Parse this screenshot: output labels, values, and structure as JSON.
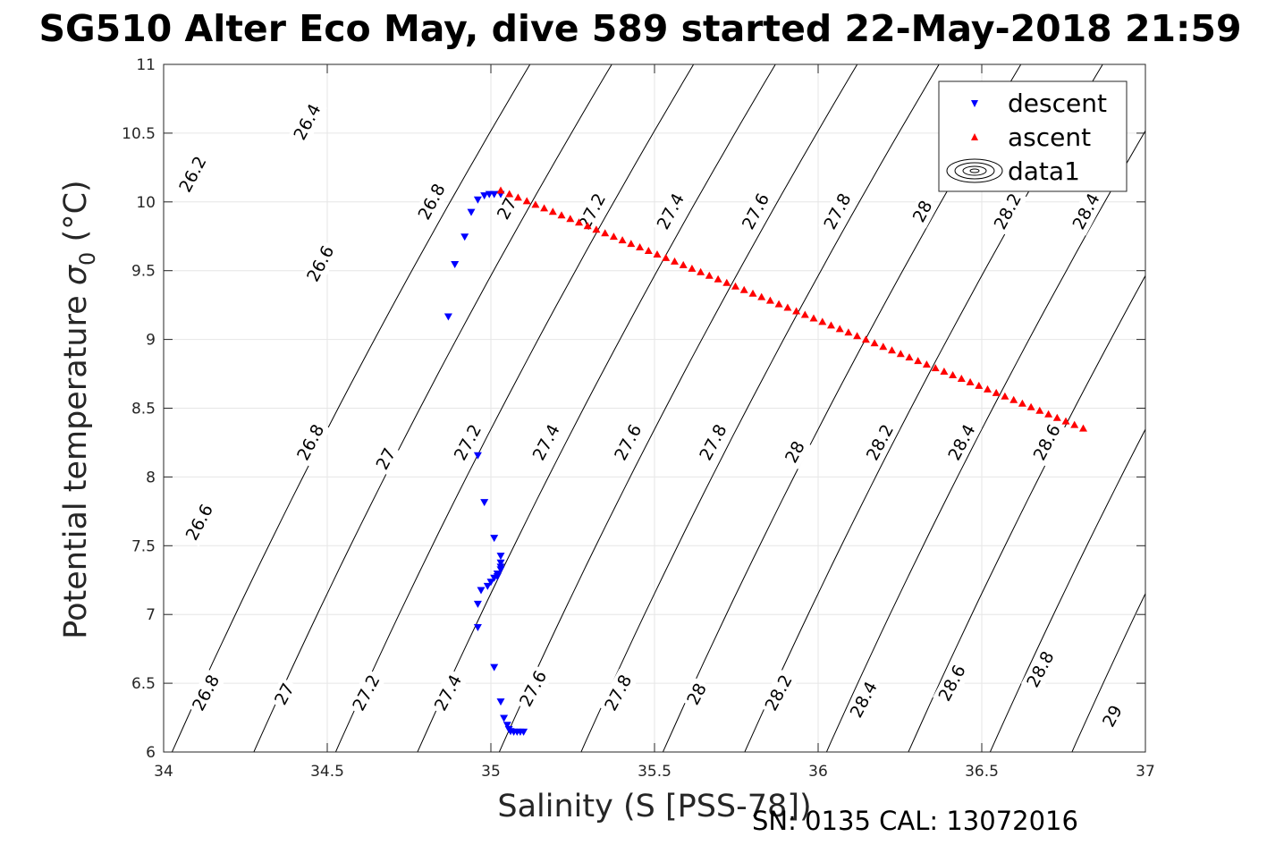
{
  "chart_data": {
    "type": "scatter",
    "title": "SG510 Alter Eco May, dive 589 started 22-May-2018 21:59",
    "xlabel": "Salinity (S [PSS-78])",
    "ylabel_main": "Potential temperature ",
    "ylabel_sigma": "σ",
    "ylabel_sub": "0",
    "ylabel_unit": " (°C)",
    "footer": "SN: 0135  CAL: 13072016",
    "xlim": [
      34,
      37
    ],
    "ylim": [
      6,
      11
    ],
    "xticks": [
      34,
      34.5,
      35,
      35.5,
      36,
      36.5,
      37
    ],
    "yticks": [
      6,
      6.5,
      7,
      7.5,
      8,
      8.5,
      9,
      9.5,
      10,
      10.5,
      11
    ],
    "grid": true,
    "legend_position": "top-right",
    "series": [
      {
        "name": "descent",
        "marker": "triangle-down",
        "color": "#0000ff",
        "points": [
          [
            34.87,
            9.17
          ],
          [
            34.89,
            9.55
          ],
          [
            34.92,
            9.75
          ],
          [
            34.94,
            9.93
          ],
          [
            34.96,
            10.02
          ],
          [
            34.98,
            10.05
          ],
          [
            34.995,
            10.06
          ],
          [
            35.01,
            10.06
          ],
          [
            35.03,
            10.06
          ],
          [
            34.96,
            8.16
          ],
          [
            34.98,
            7.82
          ],
          [
            35.01,
            7.56
          ],
          [
            35.03,
            7.43
          ],
          [
            35.03,
            7.38
          ],
          [
            35.03,
            7.35
          ],
          [
            35.03,
            7.33
          ],
          [
            35.02,
            7.3
          ],
          [
            35.02,
            7.28
          ],
          [
            35.01,
            7.27
          ],
          [
            35.0,
            7.24
          ],
          [
            34.99,
            7.21
          ],
          [
            34.97,
            7.18
          ],
          [
            34.96,
            7.08
          ],
          [
            34.96,
            6.91
          ],
          [
            35.01,
            6.62
          ],
          [
            35.03,
            6.37
          ],
          [
            35.04,
            6.25
          ],
          [
            35.05,
            6.2
          ],
          [
            35.055,
            6.17
          ],
          [
            35.06,
            6.155
          ],
          [
            35.07,
            6.15
          ],
          [
            35.08,
            6.15
          ],
          [
            35.09,
            6.15
          ],
          [
            35.1,
            6.15
          ]
        ]
      },
      {
        "name": "ascent",
        "marker": "triangle-up",
        "color": "#ff0000",
        "points": [
          [
            35.03,
            10.08
          ],
          [
            36.81,
            8.35
          ]
        ],
        "count": 68
      },
      {
        "name": "data1",
        "type": "contour",
        "color": "#000000",
        "levels": [
          26.2,
          26.4,
          26.6,
          26.8,
          27,
          27.2,
          27.4,
          27.6,
          27.8,
          28,
          28.2,
          28.4,
          28.6,
          28.8,
          29
        ]
      }
    ],
    "contour_labels": [
      {
        "text": "26.2",
        "s": 34.09,
        "t": 10.2
      },
      {
        "text": "26.4",
        "s": 34.44,
        "t": 10.58
      },
      {
        "text": "26.6",
        "s": 34.48,
        "t": 9.55
      },
      {
        "text": "26.8",
        "s": 34.82,
        "t": 10.0
      },
      {
        "text": "27",
        "s": 35.05,
        "t": 9.95
      },
      {
        "text": "27.2",
        "s": 35.31,
        "t": 9.93
      },
      {
        "text": "27.4",
        "s": 35.55,
        "t": 9.93
      },
      {
        "text": "27.6",
        "s": 35.81,
        "t": 9.93
      },
      {
        "text": "27.8",
        "s": 36.06,
        "t": 9.93
      },
      {
        "text": "28",
        "s": 36.32,
        "t": 9.93
      },
      {
        "text": "28.2",
        "s": 36.58,
        "t": 9.93
      },
      {
        "text": "28.4",
        "s": 36.82,
        "t": 9.93
      },
      {
        "text": "26.6",
        "s": 34.11,
        "t": 7.67
      },
      {
        "text": "26.8",
        "s": 34.45,
        "t": 8.25
      },
      {
        "text": "27",
        "s": 34.68,
        "t": 8.13
      },
      {
        "text": "27.2",
        "s": 34.93,
        "t": 8.25
      },
      {
        "text": "27.4",
        "s": 35.17,
        "t": 8.25
      },
      {
        "text": "27.6",
        "s": 35.42,
        "t": 8.25
      },
      {
        "text": "27.8",
        "s": 35.68,
        "t": 8.25
      },
      {
        "text": "28",
        "s": 35.93,
        "t": 8.18
      },
      {
        "text": "28.2",
        "s": 36.19,
        "t": 8.25
      },
      {
        "text": "28.4",
        "s": 36.44,
        "t": 8.25
      },
      {
        "text": "28.6",
        "s": 36.7,
        "t": 8.25
      },
      {
        "text": "26.8",
        "s": 34.13,
        "t": 6.43
      },
      {
        "text": "27",
        "s": 34.37,
        "t": 6.42
      },
      {
        "text": "27.2",
        "s": 34.62,
        "t": 6.43
      },
      {
        "text": "27.4",
        "s": 34.87,
        "t": 6.43
      },
      {
        "text": "27.6",
        "s": 35.13,
        "t": 6.46
      },
      {
        "text": "27.8",
        "s": 35.39,
        "t": 6.43
      },
      {
        "text": "28",
        "s": 35.63,
        "t": 6.42
      },
      {
        "text": "28.2",
        "s": 35.88,
        "t": 6.43
      },
      {
        "text": "28.4",
        "s": 36.14,
        "t": 6.38
      },
      {
        "text": "28.6",
        "s": 36.41,
        "t": 6.5
      },
      {
        "text": "28.8",
        "s": 36.68,
        "t": 6.6
      },
      {
        "text": "29",
        "s": 36.9,
        "t": 6.26
      }
    ]
  }
}
